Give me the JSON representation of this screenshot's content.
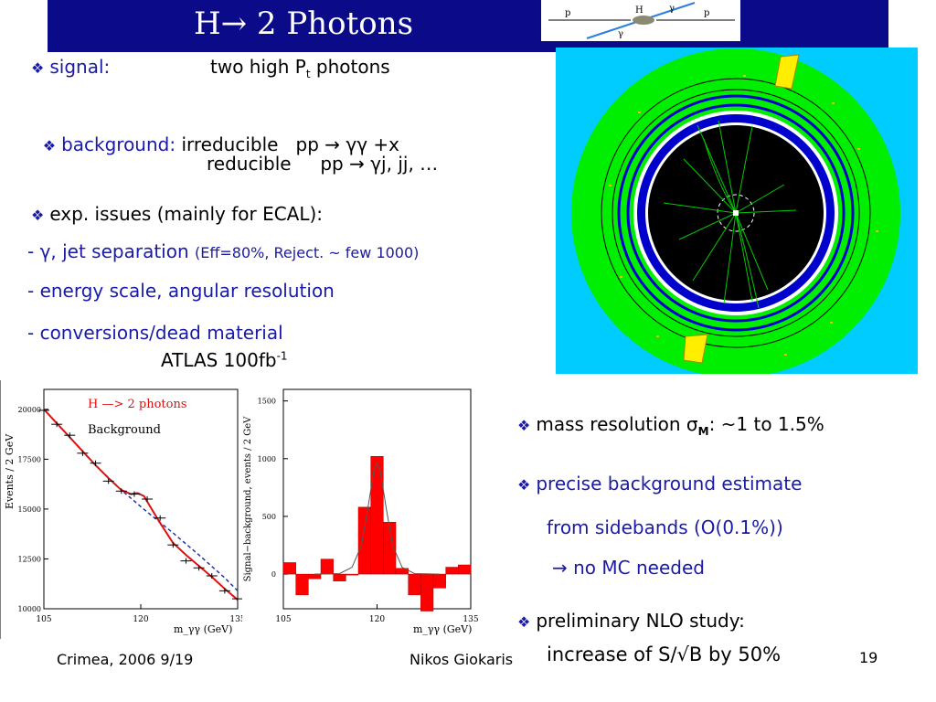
{
  "title": "H→ 2 Photons",
  "diagram_labels": {
    "p_left": "p",
    "p_right": "p",
    "h": "H",
    "gamma_top": "γ",
    "gamma_bottom": "γ"
  },
  "bullet_glyph": "❖",
  "left_text": {
    "signal_label": "signal:",
    "signal_value_pre": "two high P",
    "signal_value_sub": "t",
    "signal_value_post": " photons",
    "background_label": "background:",
    "background_irreducible": "irreducible   pp → γγ +x",
    "background_reducible": "reducible     pp → γj, jj, …",
    "exp_issues": "exp. issues (mainly for ECAL):",
    "issue1_main": "- γ, jet separation",
    "issue1_note": "(Eff=80%, Reject. ~ few 1000)",
    "issue2": "- energy scale, angular resolution",
    "issue3": "- conversions/dead material",
    "atlas_label": "ATLAS 100fb",
    "atlas_sup": "-1"
  },
  "right_text": {
    "mass_res": "mass resolution σ",
    "mass_res_sub": "M",
    "mass_res_post": ": ~1 to 1.5%",
    "bg_estimate": "precise background estimate",
    "bg_estimate_2": "from sidebands (O(0.1%))",
    "bg_estimate_3": "→ no MC needed",
    "nlo": "preliminary NLO study:",
    "nlo_2": "increase of S/√B by 50%"
  },
  "footer": {
    "left": "Crimea, 2006 9/19",
    "middle": "Nikos Giokaris",
    "page": "19"
  },
  "colors": {
    "title_bg": "#0b0b8a",
    "text_blue": "#1a1aa8",
    "detector_bg": "#00ccff",
    "detector_green": "#00ee00",
    "fit_red": "#e01010",
    "bar_red": "#ff0000"
  },
  "chart_data": [
    {
      "type": "line",
      "xlabel": "m_γγ (GeV)",
      "ylabel": "Events / 2 GeV",
      "xlim": [
        105,
        135
      ],
      "ylim": [
        10000,
        21000
      ],
      "xticks": [
        "105",
        "120",
        "135"
      ],
      "yticks": [
        "10000",
        "12500",
        "15000",
        "17500",
        "20000"
      ],
      "legend": [
        "H —> 2 photons",
        "Background"
      ],
      "series": [
        {
          "name": "H —> 2 photons",
          "x": [
            105,
            107,
            109,
            111,
            113,
            115,
            117,
            118.5,
            119.5,
            120.5,
            121.5,
            123,
            125,
            127,
            129,
            131,
            133,
            135
          ],
          "values": [
            20000,
            19300,
            18600,
            17900,
            17200,
            16550,
            15950,
            15750,
            15800,
            15650,
            15100,
            14300,
            13300,
            12700,
            12150,
            11600,
            11000,
            10450
          ]
        },
        {
          "name": "Background",
          "x": [
            105,
            109,
            113,
            117,
            121,
            125,
            129,
            133,
            135
          ],
          "values": [
            20000,
            18600,
            17200,
            15950,
            14850,
            13800,
            12700,
            11550,
            10900
          ]
        },
        {
          "name": "data",
          "x": [
            105,
            107,
            109,
            111,
            113,
            115,
            117,
            119,
            121,
            123,
            125,
            127,
            129,
            131,
            133,
            135
          ],
          "values": [
            19950,
            19250,
            18700,
            17800,
            17300,
            16400,
            15900,
            15750,
            15500,
            14550,
            13200,
            12400,
            12050,
            11650,
            10900,
            10500
          ]
        }
      ]
    },
    {
      "type": "bar",
      "xlabel": "m_γγ (GeV)",
      "ylabel": "Signal−background, events / 2 GeV",
      "xlim": [
        105,
        135
      ],
      "ylim": [
        -300,
        1600
      ],
      "xticks": [
        "105",
        "120",
        "135"
      ],
      "yticks": [
        "0",
        "500",
        "1000",
        "1500"
      ],
      "bin_width": 2,
      "x": [
        105,
        107,
        109,
        111,
        113,
        115,
        117,
        119,
        121,
        123,
        125,
        127,
        129,
        131,
        133
      ],
      "values": [
        100,
        -180,
        -40,
        130,
        -60,
        0,
        580,
        1020,
        450,
        50,
        -180,
        -320,
        -120,
        60,
        80
      ],
      "fit": {
        "x": [
          110,
          114,
          116,
          117.5,
          118.5,
          119.5,
          120,
          120.5,
          121.5,
          122.5,
          124,
          126,
          130
        ],
        "values": [
          0,
          5,
          60,
          250,
          560,
          900,
          960,
          900,
          560,
          250,
          60,
          5,
          0
        ]
      }
    }
  ]
}
